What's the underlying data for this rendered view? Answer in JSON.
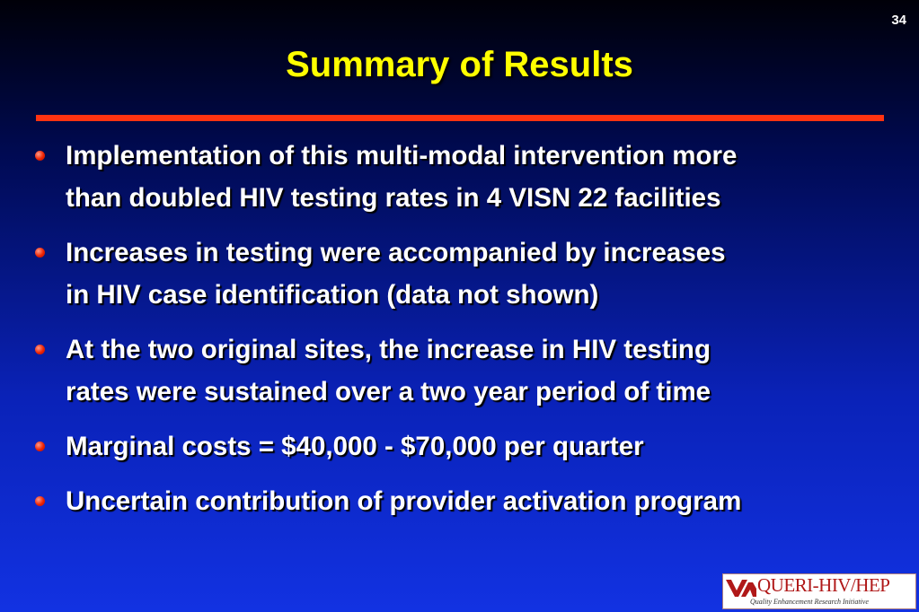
{
  "slide": {
    "number": "34",
    "title": "Summary of Results"
  },
  "bullets": [
    {
      "lines": [
        "Implementation of this multi-modal intervention more",
        "than doubled HIV testing rates in 4 VISN 22 facilities"
      ]
    },
    {
      "lines": [
        "Increases in testing were accompanied by increases",
        "in HIV case identification (data not shown)"
      ]
    },
    {
      "lines": [
        "At the two original sites, the increase in HIV testing",
        "rates were sustained over a two year period of time"
      ]
    },
    {
      "lines": [
        "Marginal costs = $40,000 - $70,000 per quarter"
      ]
    },
    {
      "lines": [
        "Uncertain contribution of provider activation program"
      ]
    }
  ],
  "logo": {
    "name": "QUERI-HIV/HEP",
    "tagline": "Quality Enhancement Research Initiative"
  },
  "colors": {
    "title": "#ffff00",
    "rule": "#ff3311",
    "bullet": "#ee2200",
    "logo_text": "#b01818"
  }
}
